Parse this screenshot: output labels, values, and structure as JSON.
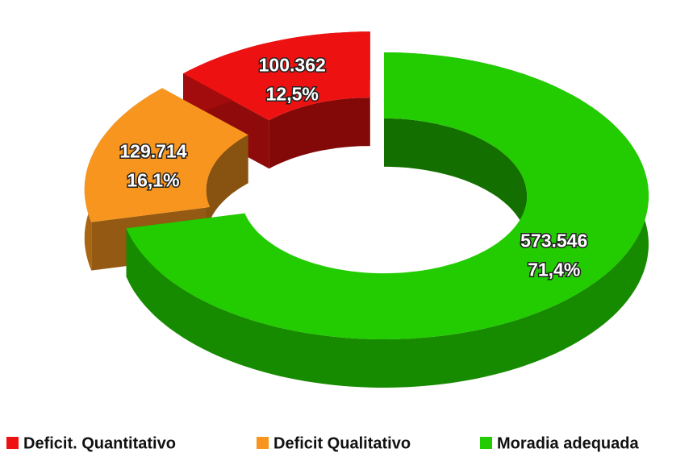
{
  "chart_data": {
    "type": "pie",
    "categories": [
      "Deficit. Quantitativo",
      "Deficit Qualitativo",
      "Moradia adequada"
    ],
    "values": [
      100362,
      129714,
      573546
    ],
    "value_labels": [
      "100.362",
      "129.714",
      "573.546"
    ],
    "percents": [
      12.5,
      16.1,
      71.4
    ],
    "percent_labels": [
      "12,5%",
      "16,1%",
      "71,4%"
    ],
    "colors": [
      "#ee1111",
      "#f7951e",
      "#22cc00"
    ],
    "donut": true,
    "exploded": [
      true,
      true,
      false
    ],
    "legend": "bottom"
  }
}
